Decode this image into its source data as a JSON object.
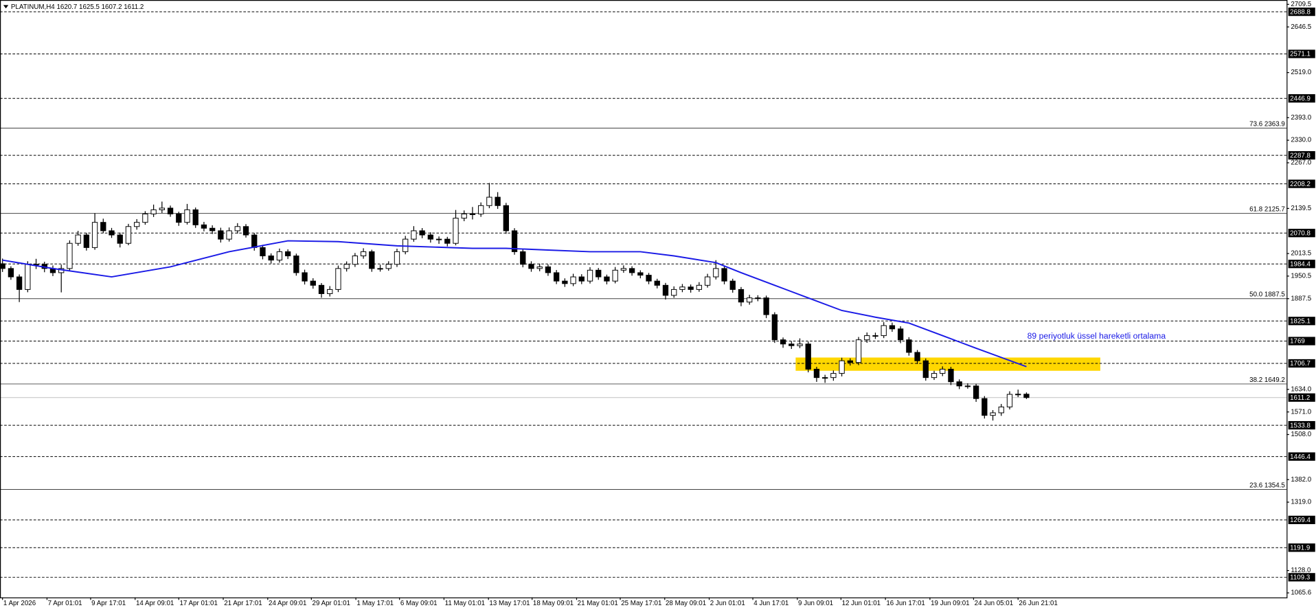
{
  "chart_data": {
    "type": "candlestick",
    "title": "PLATINUM,H4  1620.7 1625.5 1607.2 1611.2",
    "ylim": [
      1065.6,
      2709.5
    ],
    "xlim": [
      -0.3,
      153.0
    ],
    "yticks": [
      2709.5,
      2646.5,
      {
        "value": 2519,
        "label": "2519.0"
      },
      {
        "value": 2393,
        "label": "2393.0"
      },
      {
        "value": 2330,
        "label": "2330.0"
      },
      {
        "value": 2267,
        "label": "2267.0"
      },
      2139.5,
      2013.5,
      1950.5,
      1887.5,
      {
        "value": 1634,
        "label": "1634.0"
      },
      {
        "value": 1571,
        "label": "1571.0"
      },
      {
        "value": 1508,
        "label": "1508.0"
      },
      {
        "value": 1382,
        "label": "1382.0"
      },
      {
        "value": 1319,
        "label": "1319.0"
      },
      {
        "value": 1128,
        "label": "1128.0"
      },
      1065.6
    ],
    "xticks": [
      {
        "value": 0,
        "label": "1 Apr 2026"
      },
      {
        "value": 5.3,
        "label": "7 Apr 01:01"
      },
      {
        "value": 10.5,
        "label": "9 Apr 17:01"
      },
      {
        "value": 15.8,
        "label": "14 Apr 09:01"
      },
      {
        "value": 21.0,
        "label": "17 Apr 01:01"
      },
      {
        "value": 26.3,
        "label": "21 Apr 17:01"
      },
      {
        "value": 31.6,
        "label": "24 Apr 09:01"
      },
      {
        "value": 36.8,
        "label": "29 Apr 01:01"
      },
      {
        "value": 42.1,
        "label": "1 May 17:01"
      },
      {
        "value": 47.3,
        "label": "6 May 09:01"
      },
      {
        "value": 52.6,
        "label": "11 May 01:01"
      },
      {
        "value": 57.9,
        "label": "13 May 17:01"
      },
      {
        "value": 63.1,
        "label": "18 May 09:01"
      },
      {
        "value": 68.4,
        "label": "21 May 01:01"
      },
      {
        "value": 73.6,
        "label": "25 May 17:01"
      },
      {
        "value": 78.9,
        "label": "28 May 09:01"
      },
      {
        "value": 84.2,
        "label": "2 Jun 01:01"
      },
      {
        "value": 89.4,
        "label": "4 Jun 17:01"
      },
      {
        "value": 94.7,
        "label": "9 Jun 09:01"
      },
      {
        "value": 99.9,
        "label": "12 Jun 01:01"
      },
      {
        "value": 105.2,
        "label": "16 Jun 17:01"
      },
      {
        "value": 110.5,
        "label": "19 Jun 09:01"
      },
      {
        "value": 115.7,
        "label": "24 Jun 05:01"
      },
      {
        "value": 121.0,
        "label": "26 Jun 21:01"
      }
    ],
    "candles": [
      [
        1985.0,
        1999.5,
        1962.0,
        1971.7
      ],
      [
        1971.7,
        1978.0,
        1940.2,
        1948.3
      ],
      [
        1948.3,
        1955.1,
        1877.9,
        1913.1
      ],
      [
        1913.1,
        1992.0,
        1905.4,
        1983.4
      ],
      [
        1983.4,
        1998.7,
        1970.2,
        1983.4
      ],
      [
        1983.4,
        1990.6,
        1961.3,
        1971.7
      ],
      [
        1971.7,
        1980.2,
        1950.4,
        1960.0
      ],
      [
        1960.0,
        1982.5,
        1905.0,
        1971.7
      ],
      [
        1971.7,
        2050.3,
        1966.0,
        2042.0
      ],
      [
        2042.0,
        2076.8,
        2035.1,
        2065.4
      ],
      [
        2065.4,
        2071.2,
        2021.7,
        2030.2
      ],
      [
        2030.2,
        2126.3,
        2024.0,
        2100.6
      ],
      [
        2100.6,
        2110.9,
        2070.3,
        2077.1
      ],
      [
        2077.1,
        2085.0,
        2057.2,
        2065.4
      ],
      [
        2065.4,
        2072.1,
        2030.5,
        2042.0
      ],
      [
        2042.0,
        2096.4,
        2036.8,
        2088.9
      ],
      [
        2088.9,
        2109.7,
        2080.1,
        2100.6
      ],
      [
        2100.6,
        2131.8,
        2094.0,
        2124.0
      ],
      [
        2124.0,
        2150.2,
        2115.6,
        2135.7
      ],
      [
        2135.7,
        2158.6,
        2126.9,
        2140.4
      ],
      [
        2140.4,
        2147.5,
        2116.2,
        2124.0
      ],
      [
        2124.0,
        2130.3,
        2090.8,
        2100.6
      ],
      [
        2100.6,
        2152.1,
        2094.5,
        2135.7
      ],
      [
        2135.7,
        2142.0,
        2085.1,
        2093.6
      ],
      [
        2093.6,
        2101.9,
        2075.5,
        2084.2
      ],
      [
        2084.2,
        2092.3,
        2068.0,
        2077.1
      ],
      [
        2077.1,
        2085.6,
        2044.2,
        2053.7
      ],
      [
        2053.7,
        2086.3,
        2047.0,
        2077.1
      ],
      [
        2077.1,
        2098.4,
        2069.3,
        2088.9
      ],
      [
        2088.9,
        2095.7,
        2058.0,
        2065.4
      ],
      [
        2065.4,
        2071.0,
        2021.5,
        2030.2
      ],
      [
        2030.2,
        2037.8,
        1997.3,
        2006.9
      ],
      [
        2006.9,
        2014.0,
        1985.6,
        1995.1
      ],
      [
        1995.1,
        2027.4,
        1988.0,
        2018.6
      ],
      [
        2018.6,
        2025.2,
        1998.1,
        2006.9
      ],
      [
        2006.9,
        2013.3,
        1951.7,
        1960.0
      ],
      [
        1960.0,
        1968.4,
        1927.0,
        1936.6
      ],
      [
        1936.6,
        1944.5,
        1915.3,
        1924.8
      ],
      [
        1924.8,
        1931.0,
        1890.2,
        1901.4
      ],
      [
        1901.4,
        1922.6,
        1893.5,
        1913.1
      ],
      [
        1913.1,
        1980.0,
        1905.8,
        1971.7
      ],
      [
        1971.7,
        1991.5,
        1963.2,
        1983.4
      ],
      [
        1983.4,
        2015.0,
        1976.1,
        2006.9
      ],
      [
        2006.9,
        2028.3,
        1999.0,
        2018.6
      ],
      [
        2018.6,
        2024.1,
        1962.5,
        1971.7
      ],
      [
        1971.7,
        1982.2,
        1963.0,
        1971.7
      ],
      [
        1971.7,
        1992.0,
        1965.4,
        1983.4
      ],
      [
        1983.4,
        2027.1,
        1976.0,
        2018.6
      ],
      [
        2018.6,
        2062.8,
        2011.3,
        2053.7
      ],
      [
        2053.7,
        2090.0,
        2046.5,
        2077.1
      ],
      [
        2077.1,
        2084.6,
        2056.3,
        2065.4
      ],
      [
        2065.4,
        2072.8,
        2044.0,
        2053.7
      ],
      [
        2053.7,
        2061.2,
        2040.6,
        2053.7
      ],
      [
        2053.7,
        2060.1,
        2033.5,
        2042.0
      ],
      [
        2042.0,
        2135.2,
        2036.4,
        2112.3
      ],
      [
        2112.3,
        2134.0,
        2103.8,
        2124.0
      ],
      [
        2124.0,
        2143.5,
        2108.7,
        2124.0
      ],
      [
        2124.0,
        2156.3,
        2116.0,
        2147.4
      ],
      [
        2147.4,
        2210.7,
        2140.1,
        2170.9
      ],
      [
        2170.9,
        2185.0,
        2138.2,
        2147.4
      ],
      [
        2147.4,
        2155.0,
        2068.5,
        2077.1
      ],
      [
        2077.1,
        2084.3,
        2010.2,
        2018.6
      ],
      [
        2018.6,
        2026.0,
        1975.0,
        1983.4
      ],
      [
        1983.4,
        1991.8,
        1962.6,
        1971.7
      ],
      [
        1971.7,
        1985.3,
        1963.9,
        1976.4
      ],
      [
        1976.4,
        1983.0,
        1951.2,
        1960.0
      ],
      [
        1960.0,
        1967.5,
        1928.1,
        1936.6
      ],
      [
        1936.6,
        1944.2,
        1920.3,
        1929.5
      ],
      [
        1929.5,
        1957.0,
        1922.4,
        1948.3
      ],
      [
        1948.3,
        1955.8,
        1928.0,
        1936.6
      ],
      [
        1936.6,
        1975.4,
        1929.7,
        1967.0
      ],
      [
        1967.0,
        1973.2,
        1940.1,
        1948.3
      ],
      [
        1948.3,
        1954.6,
        1927.4,
        1936.6
      ],
      [
        1936.6,
        1975.9,
        1930.2,
        1967.0
      ],
      [
        1967.0,
        1980.5,
        1959.8,
        1971.7
      ],
      [
        1971.7,
        1978.1,
        1951.6,
        1960.0
      ],
      [
        1960.0,
        1966.7,
        1944.3,
        1953.0
      ],
      [
        1953.0,
        1959.4,
        1927.8,
        1936.6
      ],
      [
        1936.6,
        1943.0,
        1916.2,
        1924.8
      ],
      [
        1924.8,
        1931.5,
        1885.0,
        1896.7
      ],
      [
        1896.7,
        1921.8,
        1889.9,
        1913.1
      ],
      [
        1913.1,
        1928.4,
        1905.6,
        1920.1
      ],
      [
        1920.1,
        1927.0,
        1904.2,
        1913.1
      ],
      [
        1913.1,
        1933.6,
        1906.7,
        1924.8
      ],
      [
        1924.8,
        1956.9,
        1918.3,
        1948.3
      ],
      [
        1948.3,
        1995.0,
        1941.0,
        1971.7
      ],
      [
        1971.7,
        1978.3,
        1927.5,
        1936.6
      ],
      [
        1936.6,
        1943.1,
        1904.0,
        1913.1
      ],
      [
        1913.1,
        1920.0,
        1866.4,
        1877.9
      ],
      [
        1877.9,
        1898.2,
        1870.6,
        1889.6
      ],
      [
        1889.6,
        1897.0,
        1880.3,
        1889.6
      ],
      [
        1889.6,
        1896.0,
        1833.1,
        1842.8
      ],
      [
        1842.8,
        1849.5,
        1763.9,
        1772.5
      ],
      [
        1772.5,
        1779.0,
        1750.2,
        1760.8
      ],
      [
        1760.8,
        1768.3,
        1747.0,
        1756.1
      ],
      [
        1756.1,
        1776.5,
        1749.3,
        1760.8
      ],
      [
        1760.8,
        1767.4,
        1681.6,
        1690.5
      ],
      [
        1690.5,
        1697.2,
        1655.0,
        1667.0
      ],
      [
        1667.0,
        1674.8,
        1652.3,
        1667.0
      ],
      [
        1667.0,
        1686.9,
        1658.2,
        1678.7
      ],
      [
        1678.7,
        1722.5,
        1670.3,
        1713.9
      ],
      [
        1713.9,
        1721.0,
        1700.6,
        1709.2
      ],
      [
        1709.2,
        1780.4,
        1701.8,
        1772.5
      ],
      [
        1772.5,
        1793.0,
        1764.1,
        1784.2
      ],
      [
        1784.2,
        1792.5,
        1775.0,
        1784.2
      ],
      [
        1784.2,
        1822.0,
        1777.3,
        1812.3
      ],
      [
        1812.3,
        1820.6,
        1794.8,
        1803.0
      ],
      [
        1803.0,
        1810.4,
        1763.1,
        1772.5
      ],
      [
        1772.5,
        1779.9,
        1728.2,
        1737.4
      ],
      [
        1737.4,
        1744.0,
        1704.8,
        1713.9
      ],
      [
        1713.9,
        1720.5,
        1658.3,
        1667.0
      ],
      [
        1667.0,
        1686.1,
        1660.4,
        1678.7
      ],
      [
        1678.7,
        1698.3,
        1671.0,
        1690.5
      ],
      [
        1690.5,
        1697.0,
        1646.1,
        1655.3
      ],
      [
        1655.3,
        1662.0,
        1634.8,
        1643.6
      ],
      [
        1643.6,
        1651.2,
        1636.0,
        1643.6
      ],
      [
        1643.6,
        1650.0,
        1599.1,
        1608.4
      ],
      [
        1608.4,
        1615.3,
        1552.6,
        1561.4
      ],
      [
        1561.4,
        1576.2,
        1547.0,
        1568.6
      ],
      [
        1568.6,
        1593.3,
        1560.1,
        1585.0
      ],
      [
        1585.0,
        1628.7,
        1578.0,
        1620.2
      ],
      [
        1620.2,
        1633.4,
        1612.5,
        1620.7
      ],
      [
        1620.7,
        1625.5,
        1607.2,
        1611.2
      ]
    ],
    "ema": {
      "color": "#1a1ae6",
      "x": [
        0,
        6,
        13,
        20,
        27,
        34,
        40,
        47,
        56,
        60,
        65,
        70,
        76,
        80,
        85,
        88,
        92,
        96,
        100,
        104,
        108,
        112,
        116,
        122
      ],
      "values": [
        1995.1,
        1971.7,
        1948.3,
        1976.4,
        2018.6,
        2049.0,
        2046.7,
        2035.0,
        2028.0,
        2028.0,
        2023.3,
        2018.6,
        2018.6,
        2006.9,
        1988.1,
        1960.0,
        1924.8,
        1889.6,
        1854.4,
        1835.7,
        1819.3,
        1784.2,
        1749.0,
        1697.5
      ]
    },
    "ema_annotation": "89 periyotluk üssel hareketli ortalama",
    "levels": [
      2688.8,
      2571.1,
      2446.9,
      2287.8,
      2208.2,
      2070.8,
      1984.4,
      1825.1,
      1769.0,
      1706.7,
      1533.8,
      1446.4,
      1269.4,
      1191.9,
      1109.3
    ],
    "fibonacci": [
      {
        "level": "73.6",
        "value": 2363.9
      },
      {
        "level": "61.8",
        "value": 2125.7
      },
      {
        "level": "50.0",
        "value": 1887.5
      },
      {
        "level": "38.2",
        "value": 1649.2
      },
      {
        "level": "23.6",
        "value": 1354.5
      }
    ],
    "current_price": 1611.2,
    "zone": {
      "color": "#ffd700",
      "x": [
        94.5,
        130.8
      ],
      "y": [
        1686,
        1723
      ]
    }
  }
}
